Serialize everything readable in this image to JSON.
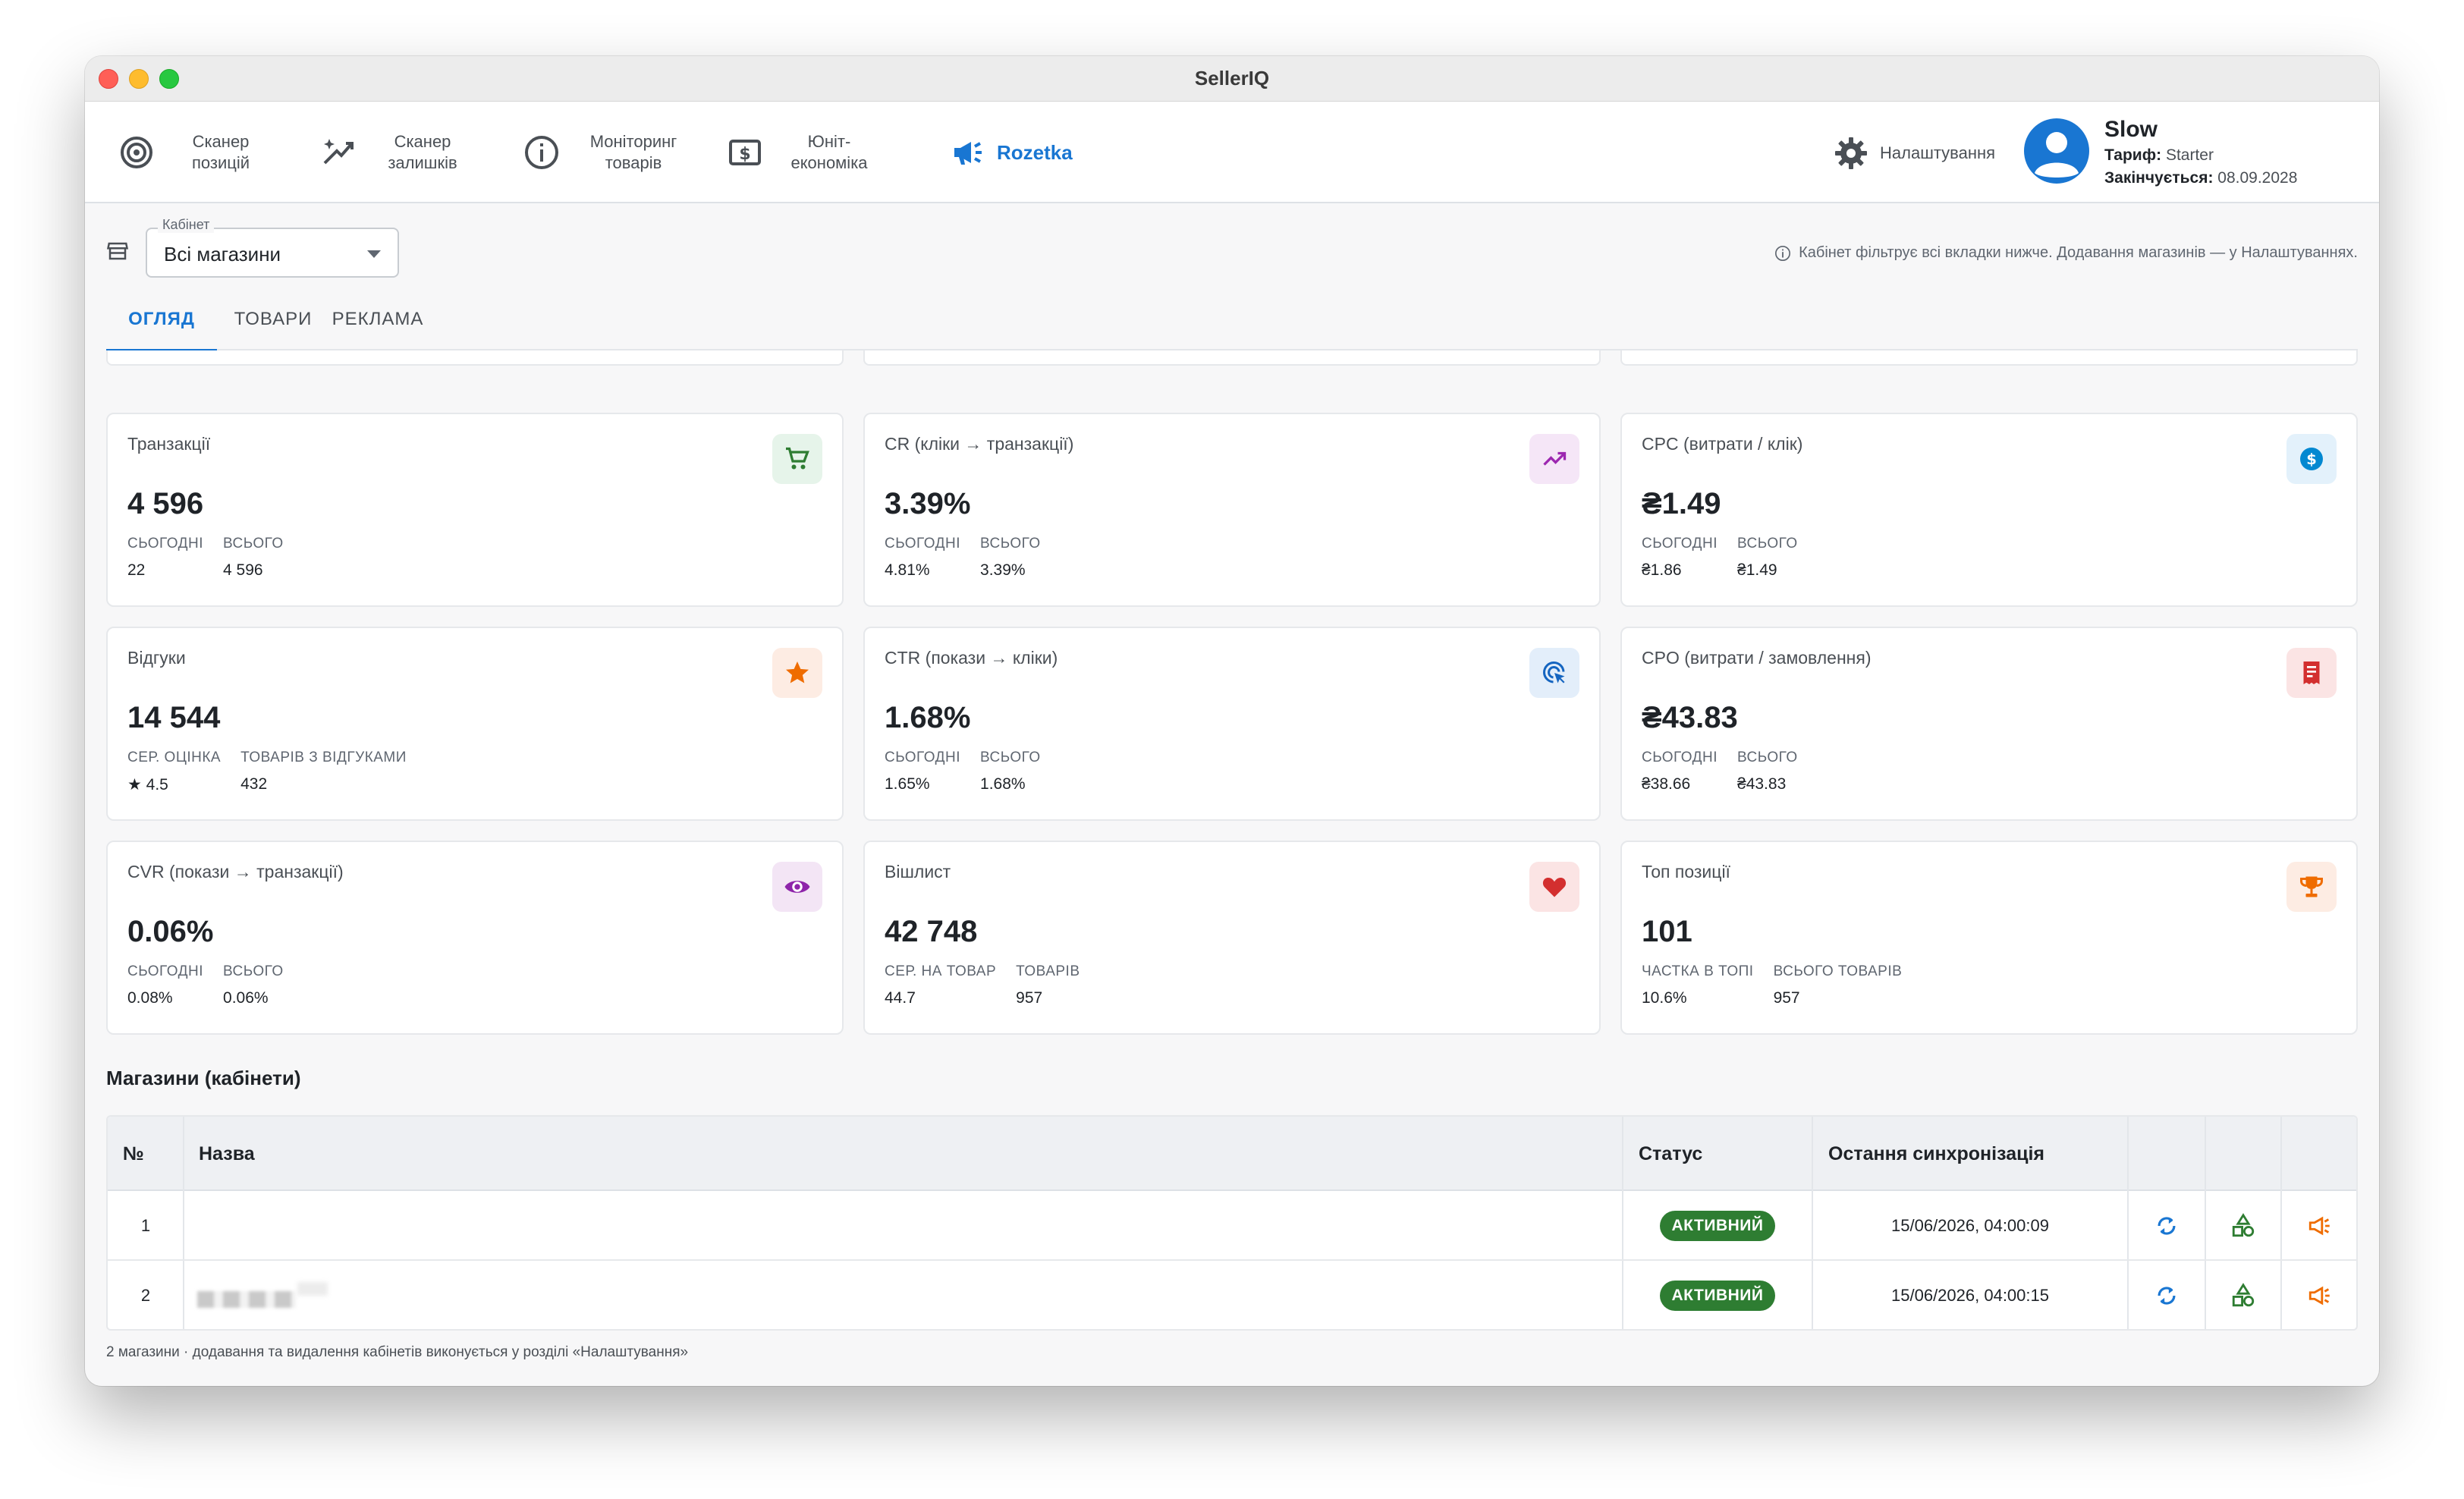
{
  "window": {
    "title": "SellerIQ"
  },
  "nav": [
    {
      "label": "Сканер\nпозицій",
      "icon": "target-icon"
    },
    {
      "label": "Сканер\nзалишків",
      "icon": "sparkle-wand-icon"
    },
    {
      "label": "Моніторинг\nтоварів",
      "icon": "info-circle-icon"
    },
    {
      "label": "Юніт-\nекономіка",
      "icon": "dollar-box-icon"
    },
    {
      "label": "Rozetka",
      "icon": "megaphone-icon",
      "active": true
    }
  ],
  "settings": {
    "label": "Налаштування"
  },
  "user": {
    "name": "Slow",
    "plan_label": "Тариф:",
    "plan_value": "Starter",
    "expires_label": "Закінчується:",
    "expires_value": "08.09.2028"
  },
  "cabinet": {
    "legend": "Кабінет",
    "value": "Всі магазини",
    "hint": "Кабінет фільтрує всі вкладки нижче. Додавання магазинів — у Налаштуваннях."
  },
  "tabs": [
    {
      "label": "ОГЛЯД",
      "active": true
    },
    {
      "label": "ТОВАРИ"
    },
    {
      "label": "РЕКЛАМА"
    }
  ],
  "cards": [
    {
      "title": "Транзакції",
      "value": "4 596",
      "icon": "cart-icon",
      "icon_bg": "#e6f4ea",
      "icon_color": "#2e7d32",
      "sub": [
        {
          "label": "Сьогодні",
          "value": "22"
        },
        {
          "label": "Всього",
          "value": "4 596"
        }
      ]
    },
    {
      "title": "CR (кліки → транзакції)",
      "value": "3.39%",
      "icon": "trending-up-icon",
      "icon_bg": "#f5e6f7",
      "icon_color": "#9c27b0",
      "sub": [
        {
          "label": "Сьогодні",
          "value": "4.81%"
        },
        {
          "label": "Всього",
          "value": "3.39%"
        }
      ]
    },
    {
      "title": "CPC (витрати / клік)",
      "value": "₴1.49",
      "icon": "dollar-coin-icon",
      "icon_bg": "#e3f1fb",
      "icon_color": "#0288d1",
      "sub": [
        {
          "label": "Сьогодні",
          "value": "₴1.86"
        },
        {
          "label": "Всього",
          "value": "₴1.49"
        }
      ]
    },
    {
      "title": "Відгуки",
      "value": "14 544",
      "icon": "star-icon",
      "icon_bg": "#fdece3",
      "icon_color": "#ef6c00",
      "sub": [
        {
          "label": "Сер. оцінка",
          "value": "★ 4.5"
        },
        {
          "label": "Товарів з відгуками",
          "value": "432"
        }
      ]
    },
    {
      "title": "CTR (покази → кліки)",
      "value": "1.68%",
      "icon": "ads-click-icon",
      "icon_bg": "#e3eefa",
      "icon_color": "#1565c0",
      "sub": [
        {
          "label": "Сьогодні",
          "value": "1.65%"
        },
        {
          "label": "Всього",
          "value": "1.68%"
        }
      ]
    },
    {
      "title": "CPO (витрати / замовлення)",
      "value": "₴43.83",
      "icon": "receipt-icon",
      "icon_bg": "#fbe4e4",
      "icon_color": "#d32f2f",
      "sub": [
        {
          "label": "Сьогодні",
          "value": "₴38.66"
        },
        {
          "label": "Всього",
          "value": "₴43.83"
        }
      ]
    },
    {
      "title": "CVR (покази → транзакції)",
      "value": "0.06%",
      "icon": "eye-icon",
      "icon_bg": "#f3e5f5",
      "icon_color": "#8e24aa",
      "sub": [
        {
          "label": "Сьогодні",
          "value": "0.08%"
        },
        {
          "label": "Всього",
          "value": "0.06%"
        }
      ]
    },
    {
      "title": "Вішлист",
      "value": "42 748",
      "icon": "heart-icon",
      "icon_bg": "#fbe4e4",
      "icon_color": "#d32f2f",
      "sub": [
        {
          "label": "Сер. на товар",
          "value": "44.7"
        },
        {
          "label": "Товарів",
          "value": "957"
        }
      ]
    },
    {
      "title": "Топ позиції",
      "value": "101",
      "icon": "trophy-icon",
      "icon_bg": "#fdece3",
      "icon_color": "#ef6c00",
      "sub": [
        {
          "label": "Частка в топі",
          "value": "10.6%"
        },
        {
          "label": "Всього товарів",
          "value": "957"
        }
      ]
    }
  ],
  "stores": {
    "title": "Магазини (кабінети)",
    "columns": {
      "num": "№",
      "name": "Назва",
      "status": "Статус",
      "sync": "Остання синхронізація"
    },
    "rows": [
      {
        "num": "1",
        "status": "АКТИВНИЙ",
        "sync": "15/06/2026, 04:00:09"
      },
      {
        "num": "2",
        "status": "АКТИВНИЙ",
        "sync": "15/06/2026, 04:00:15"
      }
    ],
    "footnote": "2 магазини · додавання та видалення кабінетів виконується у розділі «Налаштування»"
  },
  "colors": {
    "accent": "#1976d2",
    "active_badge": "#2e7d32"
  }
}
